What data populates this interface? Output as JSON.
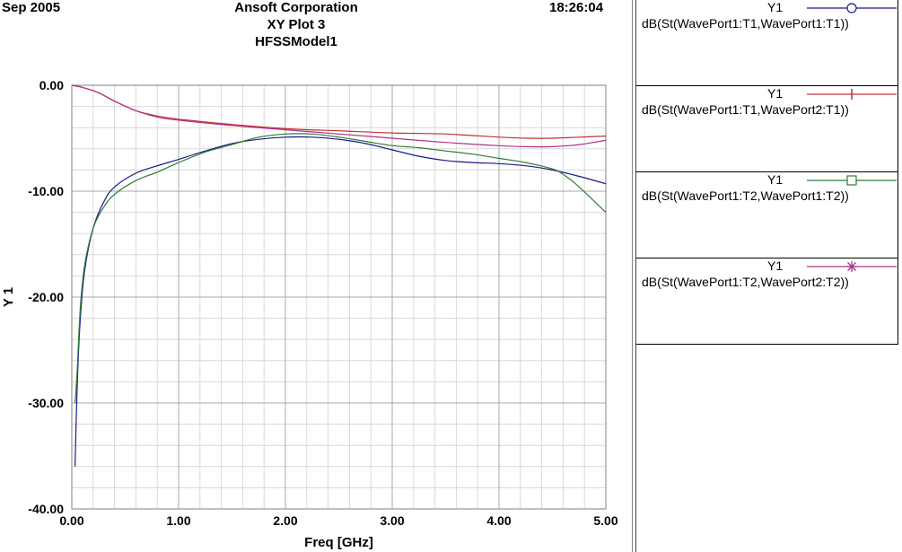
{
  "header": {
    "date": "Sep 2005",
    "company": "Ansoft Corporation",
    "plot_name": "XY Plot 3",
    "model": "HFSSModel1",
    "time": "18:26:04"
  },
  "legend": [
    {
      "y_label": "Y1",
      "expr": "dB(St(WavePort1:T1,WavePort1:T1))",
      "marker": "circle"
    },
    {
      "y_label": "Y1",
      "expr": "dB(St(WavePort1:T1,WavePort2:T1))",
      "marker": "vertical-bar"
    },
    {
      "y_label": "Y1",
      "expr": "dB(St(WavePort1:T2,WavePort1:T2))",
      "marker": "square"
    },
    {
      "y_label": "Y1",
      "expr": "dB(St(WavePort1:T2,WavePort2:T2))",
      "marker": "asterisk"
    }
  ],
  "chart_data": {
    "type": "line",
    "xlabel": "Freq [GHz]",
    "ylabel": "Y 1",
    "xlim": [
      0,
      5
    ],
    "ylim": [
      -40,
      0
    ],
    "grid": true,
    "x_ticks": [
      "0.00",
      "1.00",
      "2.00",
      "3.00",
      "4.00",
      "5.00"
    ],
    "y_ticks": [
      "0.00",
      "-10.00",
      "-20.00",
      "-30.00",
      "-40.00"
    ],
    "series": [
      {
        "name": "dB(St(WavePort1:T1,WavePort1:T1))",
        "color": "#1a1a8c",
        "x": [
          0.03,
          0.05,
          0.08,
          0.12,
          0.2,
          0.3,
          0.4,
          0.6,
          0.8,
          1.0,
          1.25,
          1.5,
          1.75,
          2.0,
          2.25,
          2.5,
          2.75,
          3.0,
          3.25,
          3.5,
          3.75,
          4.0,
          4.25,
          4.5,
          4.75,
          5.0
        ],
        "y": [
          -36.0,
          -28.5,
          -22.0,
          -17.5,
          -13.5,
          -11.0,
          -9.6,
          -8.3,
          -7.6,
          -7.0,
          -6.2,
          -5.5,
          -5.1,
          -4.9,
          -4.9,
          -5.1,
          -5.5,
          -6.1,
          -6.7,
          -7.1,
          -7.3,
          -7.4,
          -7.6,
          -8.0,
          -8.6,
          -9.3
        ]
      },
      {
        "name": "dB(St(WavePort1:T1,WavePort2:T1))",
        "color": "#c03030",
        "x": [
          0.0,
          0.1,
          0.25,
          0.4,
          0.6,
          0.8,
          1.0,
          1.5,
          2.0,
          2.5,
          3.0,
          3.5,
          4.0,
          4.25,
          4.5,
          4.75,
          5.0
        ],
        "y": [
          0.0,
          -0.2,
          -0.7,
          -1.5,
          -2.4,
          -2.9,
          -3.2,
          -3.7,
          -4.1,
          -4.3,
          -4.5,
          -4.6,
          -4.9,
          -5.0,
          -5.0,
          -4.9,
          -4.8
        ]
      },
      {
        "name": "dB(St(WavePort1:T2,WavePort1:T2))",
        "color": "#2e7d32",
        "x": [
          0.03,
          0.05,
          0.08,
          0.12,
          0.2,
          0.3,
          0.4,
          0.6,
          0.8,
          1.0,
          1.25,
          1.5,
          1.75,
          2.0,
          2.25,
          2.5,
          2.75,
          3.0,
          3.25,
          3.5,
          3.75,
          4.0,
          4.25,
          4.5,
          4.6,
          4.75,
          5.0
        ],
        "y": [
          -30.0,
          -27.0,
          -21.0,
          -17.0,
          -13.5,
          -11.5,
          -10.3,
          -9.0,
          -8.2,
          -7.3,
          -6.3,
          -5.6,
          -4.9,
          -4.6,
          -4.6,
          -4.9,
          -5.3,
          -5.7,
          -5.9,
          -6.2,
          -6.5,
          -6.9,
          -7.3,
          -7.9,
          -8.4,
          -9.6,
          -12.0
        ]
      },
      {
        "name": "dB(St(WavePort1:T2,WavePort2:T2))",
        "color": "#b0308a",
        "x": [
          0.0,
          0.1,
          0.25,
          0.4,
          0.6,
          0.8,
          1.0,
          1.5,
          2.0,
          2.5,
          3.0,
          3.5,
          4.0,
          4.25,
          4.5,
          4.75,
          5.0
        ],
        "y": [
          0.0,
          -0.2,
          -0.7,
          -1.5,
          -2.4,
          -3.0,
          -3.3,
          -3.8,
          -4.2,
          -4.6,
          -5.0,
          -5.4,
          -5.7,
          -5.8,
          -5.8,
          -5.6,
          -5.2
        ]
      }
    ]
  }
}
